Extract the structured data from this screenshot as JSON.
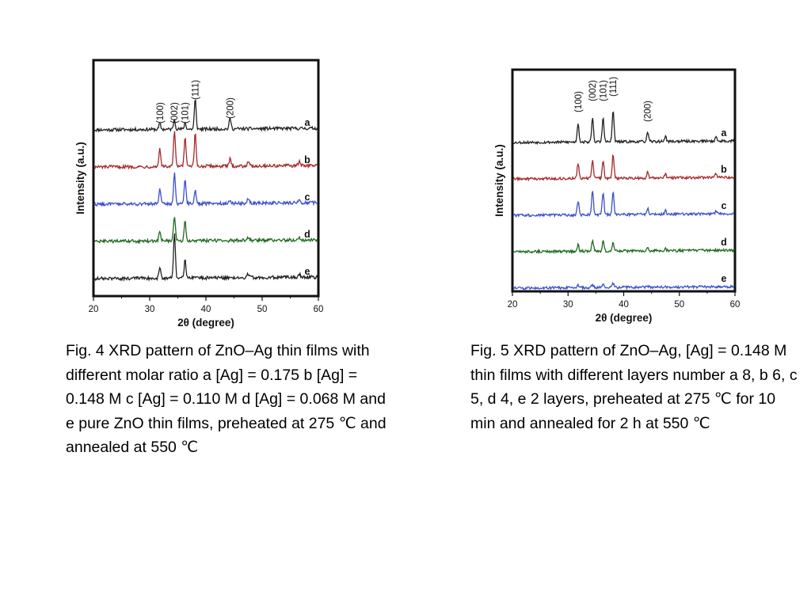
{
  "chart_data": [
    {
      "type": "line",
      "id": "fig4",
      "xlabel": "2θ (degree)",
      "ylabel": "Intensity (a.u.)",
      "xlim": [
        20,
        60
      ],
      "xticks": [
        20,
        30,
        40,
        50,
        60
      ],
      "peak_labels": [
        {
          "x": 31.8,
          "label": "(100)"
        },
        {
          "x": 34.4,
          "label": "(002)"
        },
        {
          "x": 36.3,
          "label": "(101)"
        },
        {
          "x": 38.1,
          "label": "(111)"
        },
        {
          "x": 44.3,
          "label": "(200)"
        }
      ],
      "series": [
        {
          "name": "a",
          "color": "#222222",
          "peaks": [
            {
              "x": 31.8,
              "h": 0.8
            },
            {
              "x": 34.4,
              "h": 1.4
            },
            {
              "x": 36.3,
              "h": 0.9
            },
            {
              "x": 38.1,
              "h": 4.2
            },
            {
              "x": 44.3,
              "h": 1.5
            }
          ]
        },
        {
          "name": "b",
          "color": "#a52a2a",
          "peaks": [
            {
              "x": 31.8,
              "h": 2.6
            },
            {
              "x": 34.4,
              "h": 5.0
            },
            {
              "x": 36.3,
              "h": 4.2
            },
            {
              "x": 38.1,
              "h": 4.6
            },
            {
              "x": 44.3,
              "h": 1.0
            },
            {
              "x": 47.5,
              "h": 0.7
            },
            {
              "x": 56.6,
              "h": 0.6
            }
          ]
        },
        {
          "name": "c",
          "color": "#3b4fcc",
          "peaks": [
            {
              "x": 31.8,
              "h": 2.2
            },
            {
              "x": 34.4,
              "h": 4.3
            },
            {
              "x": 36.3,
              "h": 3.6
            },
            {
              "x": 38.1,
              "h": 1.9
            },
            {
              "x": 44.3,
              "h": 0.5
            },
            {
              "x": 47.5,
              "h": 0.7
            },
            {
              "x": 56.6,
              "h": 0.6
            }
          ]
        },
        {
          "name": "d",
          "color": "#1e6b1e",
          "peaks": [
            {
              "x": 31.8,
              "h": 1.4
            },
            {
              "x": 34.4,
              "h": 3.6
            },
            {
              "x": 36.3,
              "h": 2.7
            },
            {
              "x": 47.5,
              "h": 0.4
            },
            {
              "x": 56.6,
              "h": 0.4
            }
          ]
        },
        {
          "name": "e",
          "color": "#222222",
          "peaks": [
            {
              "x": 31.8,
              "h": 1.6
            },
            {
              "x": 34.4,
              "h": 6.5
            },
            {
              "x": 36.3,
              "h": 2.6
            },
            {
              "x": 47.5,
              "h": 0.5
            },
            {
              "x": 56.6,
              "h": 0.5
            }
          ]
        }
      ]
    },
    {
      "type": "line",
      "id": "fig5",
      "xlabel": "2θ (degree)",
      "ylabel": "Intensity (a.u.)",
      "xlim": [
        20,
        60
      ],
      "xticks": [
        20,
        30,
        40,
        50,
        60
      ],
      "peak_labels": [
        {
          "x": 31.8,
          "label": "(100)"
        },
        {
          "x": 34.4,
          "label": "(002)"
        },
        {
          "x": 36.3,
          "label": "(101)"
        },
        {
          "x": 38.1,
          "label": "(111)"
        },
        {
          "x": 44.3,
          "label": "(200)"
        }
      ],
      "series": [
        {
          "name": "a",
          "color": "#222222",
          "peaks": [
            {
              "x": 31.8,
              "h": 3.0
            },
            {
              "x": 34.4,
              "h": 3.8
            },
            {
              "x": 36.3,
              "h": 3.8
            },
            {
              "x": 38.1,
              "h": 5.0
            },
            {
              "x": 44.3,
              "h": 1.4
            },
            {
              "x": 47.5,
              "h": 0.8
            },
            {
              "x": 56.6,
              "h": 0.6
            }
          ]
        },
        {
          "name": "b",
          "color": "#a52a2a",
          "peaks": [
            {
              "x": 31.8,
              "h": 2.4
            },
            {
              "x": 34.4,
              "h": 2.8
            },
            {
              "x": 36.3,
              "h": 2.8
            },
            {
              "x": 38.1,
              "h": 3.8
            },
            {
              "x": 44.3,
              "h": 1.0
            },
            {
              "x": 47.5,
              "h": 0.6
            },
            {
              "x": 56.6,
              "h": 0.6
            }
          ]
        },
        {
          "name": "c",
          "color": "#3b4fcc",
          "peaks": [
            {
              "x": 31.8,
              "h": 2.2
            },
            {
              "x": 34.4,
              "h": 4.0
            },
            {
              "x": 36.3,
              "h": 3.6
            },
            {
              "x": 38.1,
              "h": 3.8
            },
            {
              "x": 44.3,
              "h": 1.0
            },
            {
              "x": 47.5,
              "h": 0.6
            },
            {
              "x": 56.6,
              "h": 0.4
            }
          ]
        },
        {
          "name": "d",
          "color": "#1e6b1e",
          "peaks": [
            {
              "x": 31.8,
              "h": 1.0
            },
            {
              "x": 34.4,
              "h": 1.8
            },
            {
              "x": 36.3,
              "h": 1.5
            },
            {
              "x": 38.1,
              "h": 1.5
            },
            {
              "x": 44.3,
              "h": 0.6
            },
            {
              "x": 47.5,
              "h": 0.3
            }
          ]
        },
        {
          "name": "e",
          "color": "#3b4fcc",
          "peaks": [
            {
              "x": 31.8,
              "h": 0.4
            },
            {
              "x": 34.4,
              "h": 0.5
            },
            {
              "x": 36.3,
              "h": 0.5
            },
            {
              "x": 38.1,
              "h": 0.7
            },
            {
              "x": 44.3,
              "h": 0.2
            }
          ]
        }
      ]
    }
  ],
  "captions": {
    "fig4": "Fig. 4 XRD pattern of ZnO–Ag thin films with different molar ratio a [Ag] = 0.175 b [Ag] = 0.148 M c [Ag] = 0.110 M d [Ag] = 0.068 M and e pure ZnO thin films, preheated at 275 ℃ and annealed at 550 ℃",
    "fig5": "Fig. 5 XRD pattern of ZnO–Ag, [Ag] = 0.148 M thin films with different layers number a 8, b 6, c 5, d 4, e 2 layers, preheated at 275 ℃ for 10 min and annealed for 2 h at 550 ℃"
  }
}
